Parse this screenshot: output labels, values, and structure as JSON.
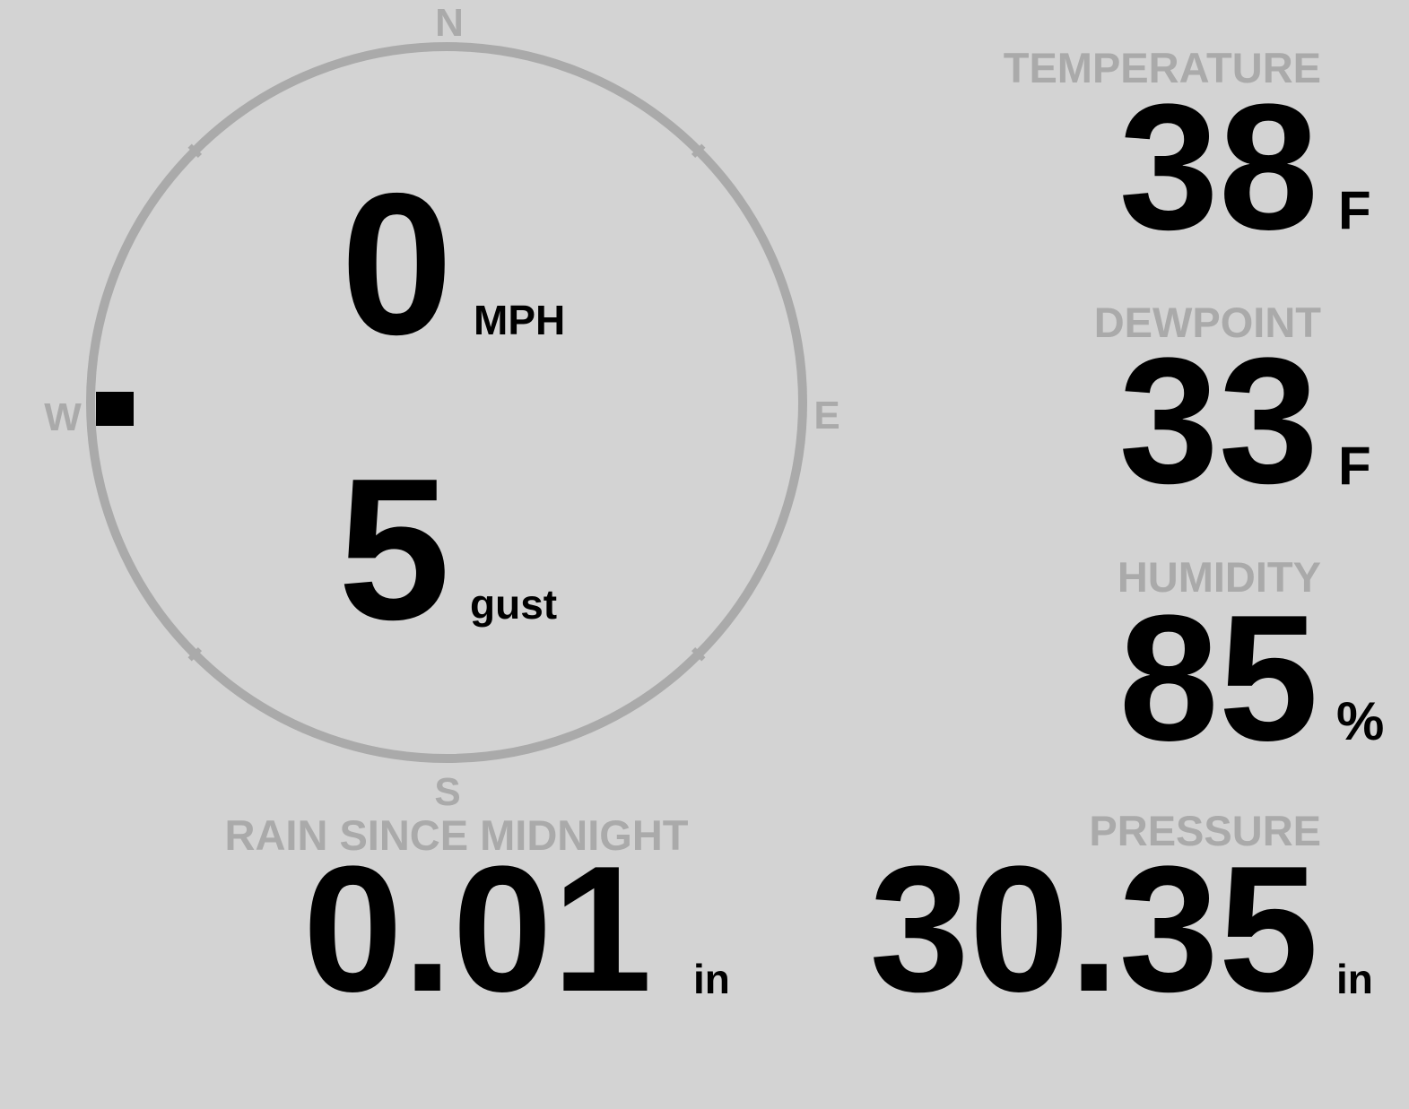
{
  "colors": {
    "background": "#d3d3d3",
    "label": "#aaaaaa",
    "value": "#000000"
  },
  "compass": {
    "north": "N",
    "east": "E",
    "south": "S",
    "west": "W",
    "wind_direction_deg": 270,
    "wind_speed": "0",
    "wind_speed_unit": "MPH",
    "gust": "5",
    "gust_unit": "gust"
  },
  "temperature": {
    "label": "TEMPERATURE",
    "value": "38",
    "unit": "F"
  },
  "dewpoint": {
    "label": "DEWPOINT",
    "value": "33",
    "unit": "F"
  },
  "humidity": {
    "label": "HUMIDITY",
    "value": "85",
    "unit": "%"
  },
  "rain": {
    "label": "RAIN SINCE MIDNIGHT",
    "value": "0.01",
    "unit": "in"
  },
  "pressure": {
    "label": "PRESSURE",
    "value": "30.35",
    "unit": "in"
  }
}
